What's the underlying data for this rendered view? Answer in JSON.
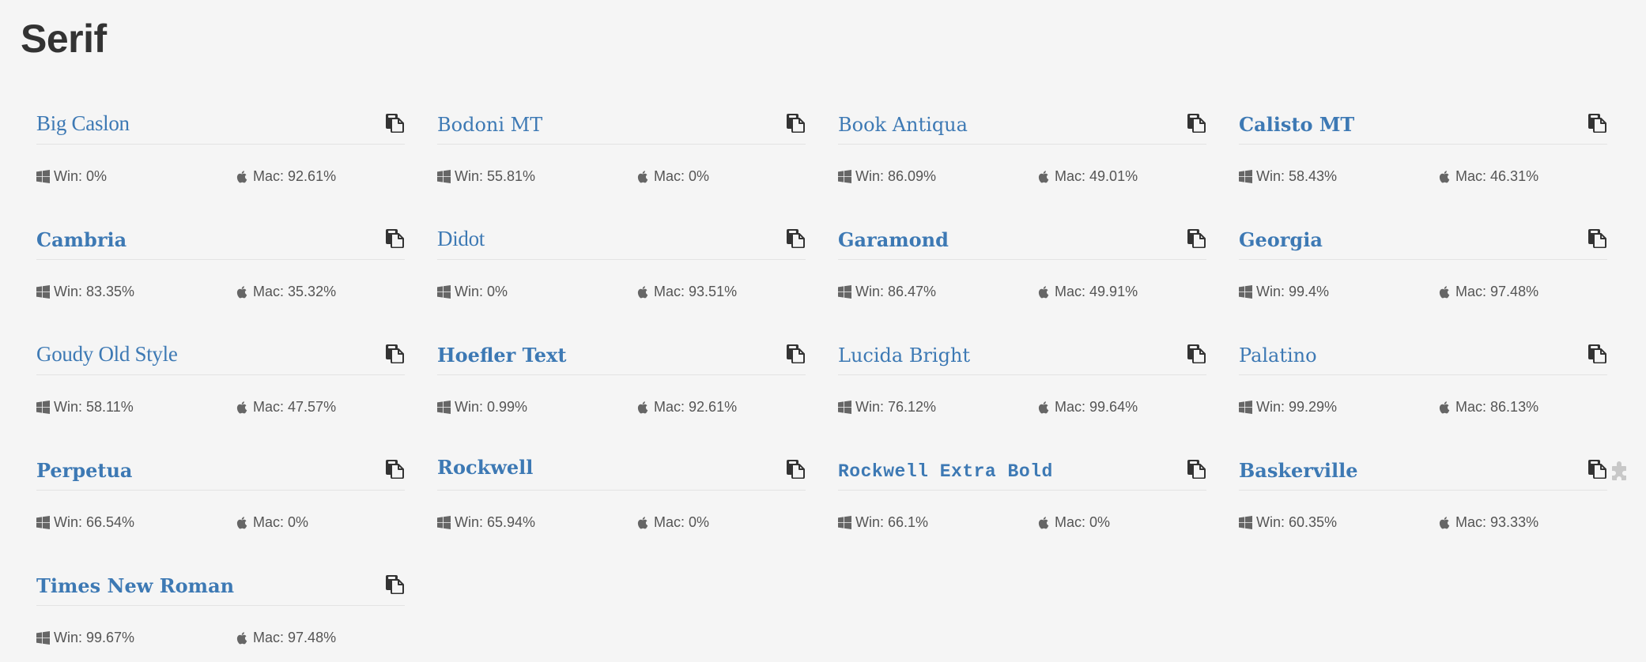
{
  "page": {
    "title": "Serif"
  },
  "labels": {
    "win": "Win: ",
    "mac": "Mac: "
  },
  "icons": {
    "copy": "copy-icon",
    "windows": "windows-icon",
    "apple": "apple-icon",
    "extension": "puzzle-icon"
  },
  "colors": {
    "font_name": "#3d79b4",
    "title": "#333333",
    "stat_text": "#555555",
    "background": "#f5f5f5"
  },
  "fonts": [
    {
      "name": "Big Caslon",
      "win": "0%",
      "mac": "92.61%",
      "style": "light"
    },
    {
      "name": "Bodoni MT",
      "win": "55.81%",
      "mac": "0%",
      "style": "regular"
    },
    {
      "name": "Book Antiqua",
      "win": "86.09%",
      "mac": "49.01%",
      "style": "regular"
    },
    {
      "name": "Calisto MT",
      "win": "58.43%",
      "mac": "46.31%",
      "style": "bold"
    },
    {
      "name": "Cambria",
      "win": "83.35%",
      "mac": "35.32%",
      "style": "bold"
    },
    {
      "name": "Didot",
      "win": "0%",
      "mac": "93.51%",
      "style": "light"
    },
    {
      "name": "Garamond",
      "win": "86.47%",
      "mac": "49.91%",
      "style": "bold"
    },
    {
      "name": "Georgia",
      "win": "99.4%",
      "mac": "97.48%",
      "style": "bold"
    },
    {
      "name": "Goudy Old Style",
      "win": "58.11%",
      "mac": "47.57%",
      "style": "light"
    },
    {
      "name": "Hoefler Text",
      "win": "0.99%",
      "mac": "92.61%",
      "style": "bold"
    },
    {
      "name": "Lucida Bright",
      "win": "76.12%",
      "mac": "99.64%",
      "style": "regular"
    },
    {
      "name": "Palatino",
      "win": "99.29%",
      "mac": "86.13%",
      "style": "regular"
    },
    {
      "name": "Perpetua",
      "win": "66.54%",
      "mac": "0%",
      "style": "bold"
    },
    {
      "name": "Rockwell",
      "win": "65.94%",
      "mac": "0%",
      "style": "bold-raised"
    },
    {
      "name": "Rockwell Extra Bold",
      "win": "66.1%",
      "mac": "0%",
      "style": "mono"
    },
    {
      "name": "Baskerville",
      "win": "60.35%",
      "mac": "93.33%",
      "style": "bold",
      "extension_icon": true
    },
    {
      "name": "Times New Roman",
      "win": "99.67%",
      "mac": "97.48%",
      "style": "bold"
    }
  ]
}
